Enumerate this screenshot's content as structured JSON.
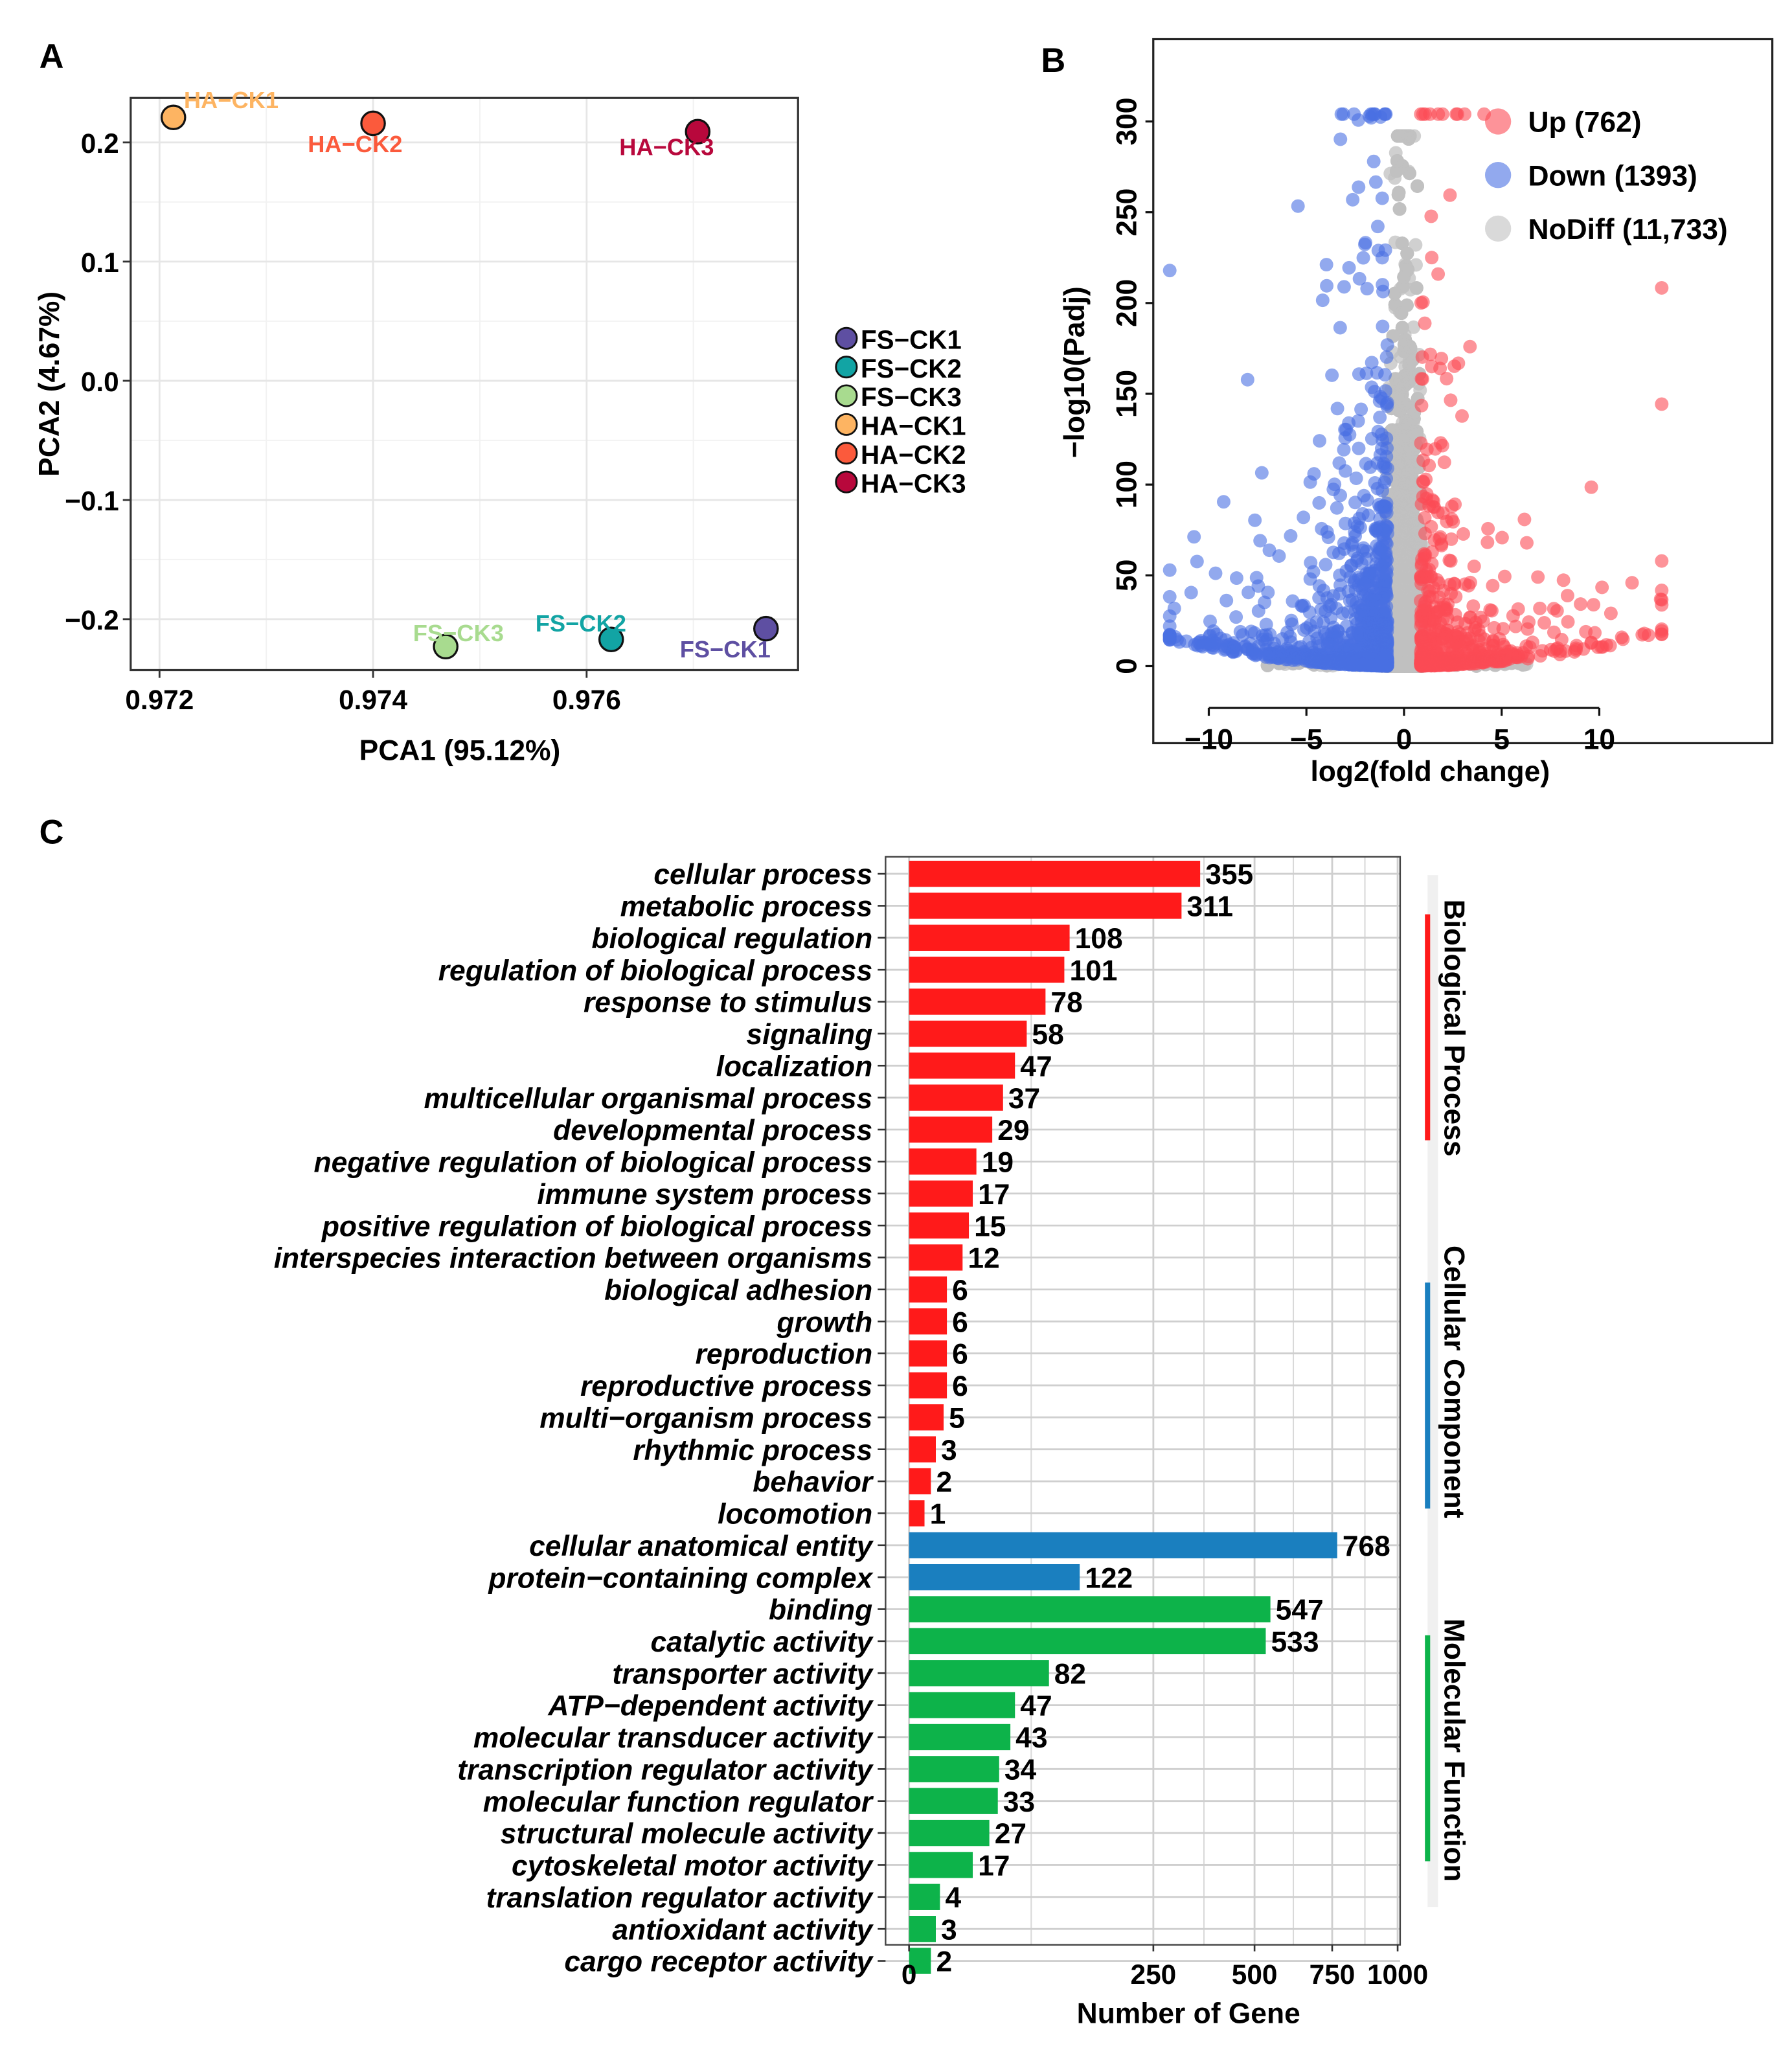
{
  "panel_labels": {
    "a": "A",
    "b": "B",
    "c": "C"
  },
  "chart_data": [
    {
      "type": "scatter",
      "panel": "A",
      "xlabel": "PCA1 (95.12%)",
      "ylabel": "PCA2 (4.67%)",
      "xlim": [
        0.97173,
        0.97798
      ],
      "ylim": [
        -0.2427,
        0.2373
      ],
      "xticks": [
        0.972,
        0.974,
        0.976
      ],
      "xtick_labels": [
        "0.972",
        "0.974",
        "0.976"
      ],
      "yticks": [
        0.2,
        0.1,
        0.0,
        -0.1,
        -0.2
      ],
      "ytick_labels": [
        "0.2",
        "0.1",
        "0.0",
        "−0.1",
        "−0.2"
      ],
      "grid": true,
      "legend_position": "right",
      "points": [
        {
          "name": "FS−CK1",
          "x": 0.97768,
          "y": -0.208,
          "color": "#5e4fa2"
        },
        {
          "name": "FS−CK2",
          "x": 0.97623,
          "y": -0.217,
          "color": "#12a4a4"
        },
        {
          "name": "FS−CK3",
          "x": 0.97468,
          "y": -0.223,
          "color": "#a8db8f"
        },
        {
          "name": "HA−CK1",
          "x": 0.97213,
          "y": 0.221,
          "color": "#fdb462"
        },
        {
          "name": "HA−CK2",
          "x": 0.974,
          "y": 0.216,
          "color": "#fb5a3c"
        },
        {
          "name": "HA−CK3",
          "x": 0.97704,
          "y": 0.209,
          "color": "#b8083c"
        }
      ]
    },
    {
      "type": "scatter",
      "panel": "B",
      "xlabel": "log2(fold change)",
      "ylabel": "−log10(Padj)",
      "xlim": [
        -12.6,
        18.9
      ],
      "ylim": [
        -42,
        345
      ],
      "xticks": [
        -10,
        -5,
        0,
        5,
        10
      ],
      "xtick_labels": [
        "−10",
        "−5",
        "0",
        "5",
        "10"
      ],
      "yticks": [
        0,
        50,
        100,
        150,
        200,
        250,
        300
      ],
      "ytick_labels": [
        "0",
        "50",
        "100",
        "150",
        "200",
        "250",
        "300"
      ],
      "legend_position": "top-right",
      "groups": [
        {
          "label": "Up (762)",
          "count": 762,
          "color": "#fb4b55"
        },
        {
          "label": "Down (1393)",
          "count": 1393,
          "color": "#4a6fe3"
        },
        {
          "label": "NoDiff (11,733)",
          "count": 11733,
          "color": "#c0c0c0"
        }
      ]
    },
    {
      "type": "bar",
      "panel": "C",
      "orientation": "horizontal",
      "xlabel": "Number of Gene",
      "x_scale": "sqrt",
      "xlim": [
        0,
        1000
      ],
      "xticks": [
        0,
        250,
        500,
        750,
        1000
      ],
      "xtick_labels": [
        "0",
        "250",
        "500",
        "750",
        "1000"
      ],
      "grid": true,
      "groups": [
        {
          "label": "Biological Process",
          "color": "#ff1a1a"
        },
        {
          "label": "Cellular Component",
          "color": "#1a7fbf"
        },
        {
          "label": "Molecular Function",
          "color": "#0db34a"
        }
      ],
      "categories": [
        "cellular process",
        "metabolic process",
        "biological regulation",
        "regulation of biological process",
        "response to stimulus",
        "signaling",
        "localization",
        "multicellular organismal process",
        "developmental process",
        "negative regulation of biological process",
        "immune system process",
        "positive regulation of biological process",
        "interspecies interaction between organisms",
        "biological adhesion",
        "growth",
        "reproduction",
        "reproductive process",
        "multi−organism process",
        "rhythmic process",
        "behavior",
        "locomotion",
        "cellular anatomical entity",
        "protein−containing complex",
        "binding",
        "catalytic activity",
        "transporter activity",
        "ATP−dependent activity",
        "molecular transducer activity",
        "transcription regulator activity",
        "molecular function regulator",
        "structural molecule activity",
        "cytoskeletal motor activity",
        "translation regulator activity",
        "antioxidant activity",
        "cargo receptor activity"
      ],
      "values": [
        355,
        311,
        108,
        101,
        78,
        58,
        47,
        37,
        29,
        19,
        17,
        15,
        12,
        6,
        6,
        6,
        6,
        5,
        3,
        2,
        1,
        768,
        122,
        547,
        533,
        82,
        47,
        43,
        34,
        33,
        27,
        17,
        4,
        3,
        2
      ],
      "value_labels": [
        "355",
        "311",
        "108",
        "101",
        "78",
        "58",
        "47",
        "37",
        "29",
        "19",
        "17",
        "15",
        "12",
        "6",
        "6",
        "6",
        "6",
        "5",
        "3",
        "2",
        "1",
        "768",
        "122",
        "547",
        "533",
        "82",
        "47",
        "43",
        "34",
        "33",
        "27",
        "17",
        "4",
        "3",
        "2"
      ],
      "group_index": [
        0,
        0,
        0,
        0,
        0,
        0,
        0,
        0,
        0,
        0,
        0,
        0,
        0,
        0,
        0,
        0,
        0,
        0,
        0,
        0,
        0,
        1,
        1,
        2,
        2,
        2,
        2,
        2,
        2,
        2,
        2,
        2,
        2,
        2,
        2
      ]
    }
  ]
}
